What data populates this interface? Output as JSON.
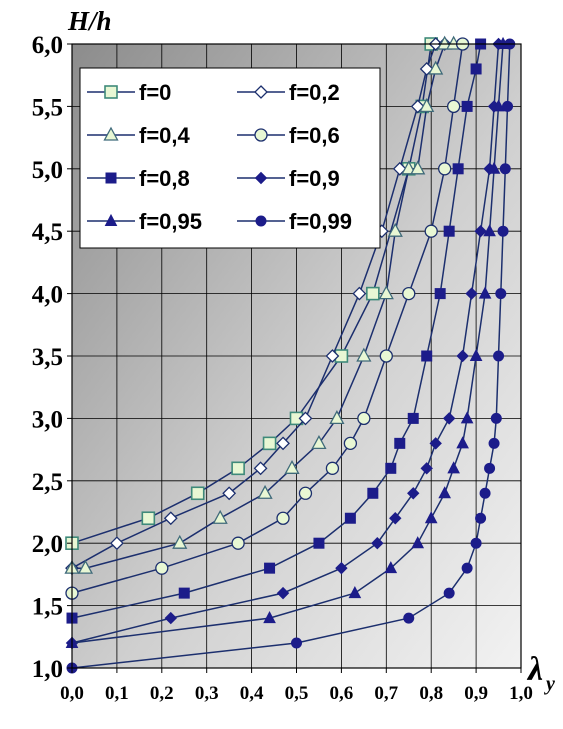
{
  "chart_data": {
    "type": "line",
    "ylabel": "H/h",
    "xlabel": "λ",
    "xlabel_sub": "y",
    "xlim": [
      0.0,
      1.0
    ],
    "ylim": [
      1.0,
      6.0
    ],
    "x_ticks": [
      "0,0",
      "0,1",
      "0,2",
      "0,3",
      "0,4",
      "0,5",
      "0,6",
      "0,7",
      "0,8",
      "0,9",
      "1,0"
    ],
    "y_ticks": [
      "1,0",
      "1,5",
      "2,0",
      "2,5",
      "3,0",
      "3,5",
      "4,0",
      "4,5",
      "5,0",
      "5,5",
      "6,0"
    ],
    "grid": true,
    "legend_position": "top-left",
    "colors": {
      "line": "#1c2f6e",
      "marker_fill_light": "#e8f7d4",
      "marker_fill_white": "#ffffff",
      "marker_fill_dark": "#1c1c8a"
    },
    "series": [
      {
        "name": "f=0",
        "marker": "square-open",
        "x": [
          0.0,
          0.17,
          0.28,
          0.37,
          0.44,
          0.5,
          0.6,
          0.67,
          0.75,
          0.78,
          0.8
        ],
        "y": [
          2.0,
          2.2,
          2.4,
          2.6,
          2.8,
          3.0,
          3.5,
          4.0,
          5.0,
          5.5,
          6.0
        ]
      },
      {
        "name": "f=0,2",
        "marker": "diamond-open",
        "x": [
          0.0,
          0.1,
          0.22,
          0.35,
          0.42,
          0.47,
          0.52,
          0.58,
          0.64,
          0.69,
          0.73,
          0.77,
          0.79,
          0.81,
          0.83
        ],
        "y": [
          1.8,
          2.0,
          2.2,
          2.4,
          2.6,
          2.8,
          3.0,
          3.5,
          4.0,
          4.5,
          5.0,
          5.5,
          5.8,
          6.0,
          6.0
        ]
      },
      {
        "name": "f=0,4",
        "marker": "triangle-open",
        "x": [
          0.0,
          0.03,
          0.24,
          0.33,
          0.43,
          0.49,
          0.55,
          0.59,
          0.65,
          0.7,
          0.72,
          0.75,
          0.77,
          0.79,
          0.81,
          0.83,
          0.85
        ],
        "y": [
          1.8,
          1.8,
          2.0,
          2.2,
          2.4,
          2.6,
          2.8,
          3.0,
          3.5,
          4.0,
          4.5,
          5.0,
          5.0,
          5.5,
          5.8,
          6.0,
          6.0
        ]
      },
      {
        "name": "f=0,6",
        "marker": "circle-open",
        "x": [
          0.0,
          0.2,
          0.37,
          0.47,
          0.52,
          0.58,
          0.62,
          0.65,
          0.7,
          0.75,
          0.8,
          0.83,
          0.85,
          0.87
        ],
        "y": [
          1.6,
          1.8,
          2.0,
          2.2,
          2.4,
          2.6,
          2.8,
          3.0,
          3.5,
          4.0,
          4.5,
          5.0,
          5.5,
          6.0
        ]
      },
      {
        "name": "f=0,8",
        "marker": "square-filled",
        "x": [
          0.0,
          0.25,
          0.44,
          0.55,
          0.62,
          0.67,
          0.71,
          0.73,
          0.76,
          0.79,
          0.82,
          0.84,
          0.86,
          0.88,
          0.9,
          0.91
        ],
        "y": [
          1.4,
          1.6,
          1.8,
          2.0,
          2.2,
          2.4,
          2.6,
          2.8,
          3.0,
          3.5,
          4.0,
          4.5,
          5.0,
          5.5,
          5.8,
          6.0
        ]
      },
      {
        "name": "f=0,9",
        "marker": "diamond-filled",
        "x": [
          0.0,
          0.22,
          0.47,
          0.6,
          0.68,
          0.72,
          0.76,
          0.79,
          0.81,
          0.84,
          0.87,
          0.89,
          0.91,
          0.93,
          0.94,
          0.95
        ],
        "y": [
          1.2,
          1.4,
          1.6,
          1.8,
          2.0,
          2.2,
          2.4,
          2.6,
          2.8,
          3.0,
          3.5,
          4.0,
          4.5,
          5.0,
          5.5,
          6.0
        ]
      },
      {
        "name": "f=0,95",
        "marker": "triangle-filled",
        "x": [
          0.0,
          0.44,
          0.63,
          0.71,
          0.77,
          0.8,
          0.83,
          0.85,
          0.87,
          0.88,
          0.9,
          0.92,
          0.93,
          0.94,
          0.95,
          0.96
        ],
        "y": [
          1.2,
          1.4,
          1.6,
          1.8,
          2.0,
          2.2,
          2.4,
          2.6,
          2.8,
          3.0,
          3.5,
          4.0,
          4.5,
          5.0,
          5.5,
          6.0
        ]
      },
      {
        "name": "f=0,99",
        "marker": "circle-filled",
        "x": [
          0.0,
          0.5,
          0.75,
          0.84,
          0.88,
          0.9,
          0.91,
          0.92,
          0.93,
          0.94,
          0.945,
          0.95,
          0.955,
          0.96,
          0.965,
          0.97,
          0.975
        ],
        "y": [
          1.0,
          1.2,
          1.4,
          1.6,
          1.8,
          2.0,
          2.2,
          2.4,
          2.6,
          2.8,
          3.0,
          3.5,
          4.0,
          4.5,
          5.0,
          5.5,
          6.0
        ]
      }
    ]
  }
}
